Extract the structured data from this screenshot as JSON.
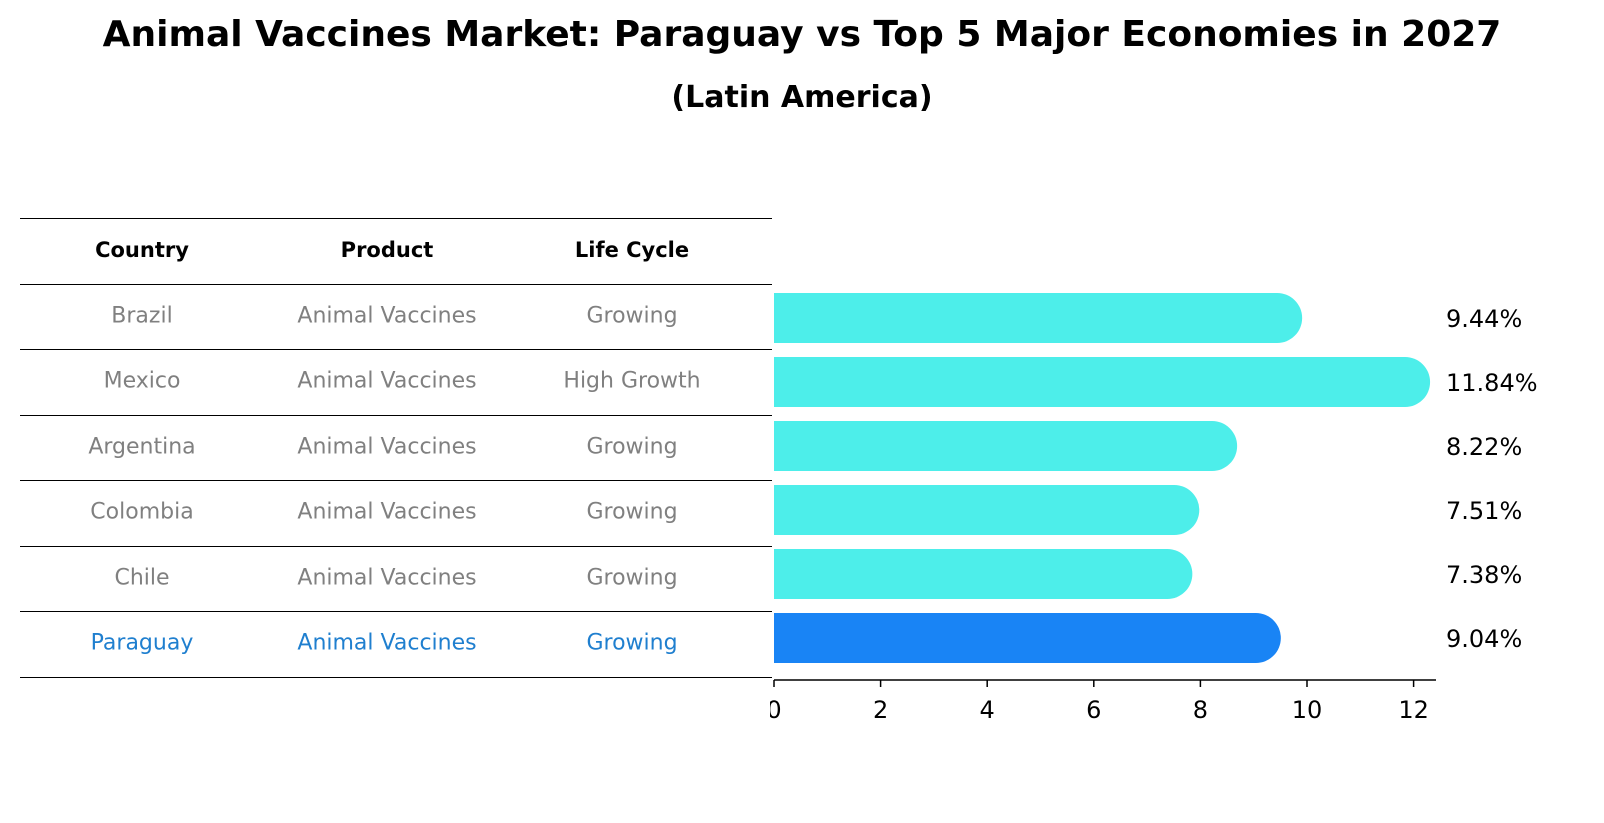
{
  "title": "Animal Vaccines Market: Paraguay vs Top 5 Major Economies in 2027",
  "subtitle": "(Latin America)",
  "table": {
    "headers": [
      "Country",
      "Product",
      "Life Cycle"
    ],
    "rows": [
      {
        "country": "Brazil",
        "product": "Animal Vaccines",
        "life_cycle": "Growing",
        "highlight": false
      },
      {
        "country": "Mexico",
        "product": "Animal Vaccines",
        "life_cycle": "High Growth",
        "highlight": false
      },
      {
        "country": "Argentina",
        "product": "Animal Vaccines",
        "life_cycle": "Growing",
        "highlight": false
      },
      {
        "country": "Colombia",
        "product": "Animal Vaccines",
        "life_cycle": "Growing",
        "highlight": false
      },
      {
        "country": "Chile",
        "product": "Animal Vaccines",
        "life_cycle": "Growing",
        "highlight": false
      },
      {
        "country": "Paraguay",
        "product": "Animal Vaccines",
        "life_cycle": "Growing",
        "highlight": true
      }
    ]
  },
  "colors": {
    "bar_default": "#4DEEEA",
    "bar_highlight": "#1984F5",
    "text_default": "#808080",
    "text_highlight": "#1F7FCF"
  },
  "chart_data": {
    "type": "bar",
    "orientation": "horizontal",
    "categories": [
      "Brazil",
      "Mexico",
      "Argentina",
      "Colombia",
      "Chile",
      "Paraguay"
    ],
    "values": [
      9.44,
      11.84,
      8.22,
      7.51,
      7.38,
      9.04
    ],
    "value_labels": [
      "9.44%",
      "11.84%",
      "8.22%",
      "7.51%",
      "7.38%",
      "9.04%"
    ],
    "highlight": "Paraguay",
    "xlim": [
      0,
      12.4
    ],
    "xticks": [
      0,
      2,
      4,
      6,
      8,
      10,
      12
    ],
    "xtick_labels": [
      "0",
      "2",
      "4",
      "6",
      "8",
      "10",
      "12"
    ],
    "xlabel": "",
    "ylabel": "",
    "grid": false
  }
}
